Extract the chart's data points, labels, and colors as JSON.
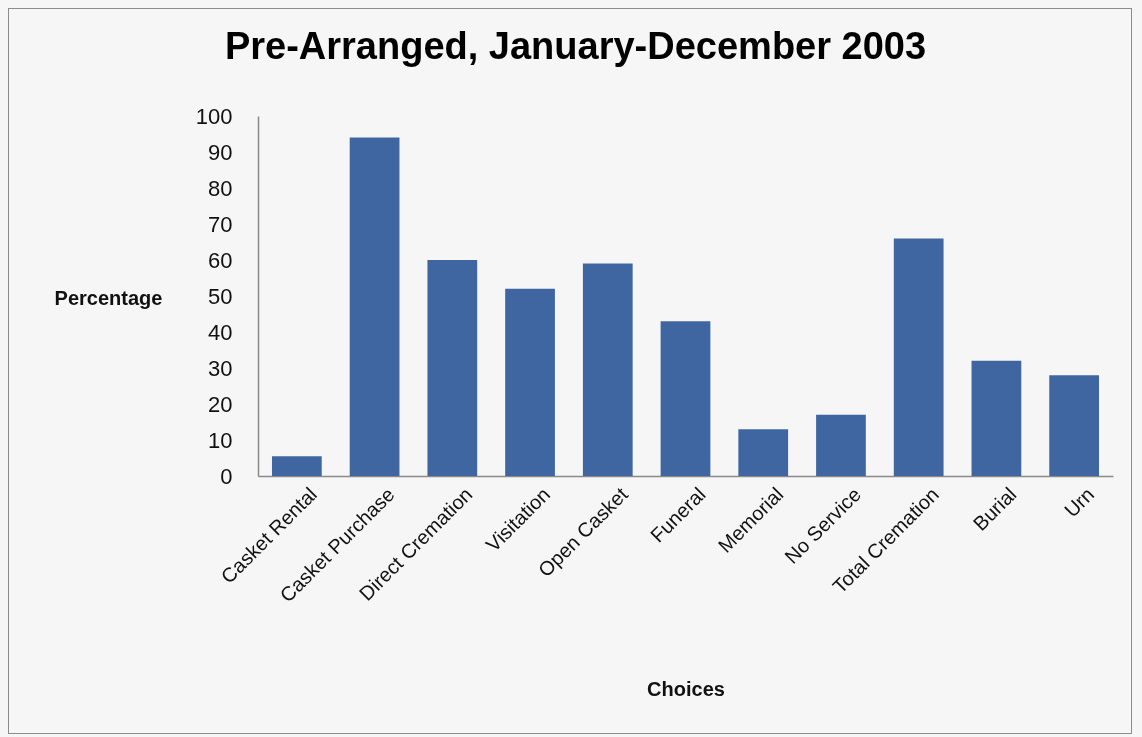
{
  "chart_data": {
    "type": "bar",
    "title": "Pre-Arranged, January-December 2003",
    "xlabel": "Choices",
    "ylabel": "Percentage",
    "categories": [
      "Casket Rental",
      "Casket Purchase",
      "Direct Cremation",
      "Visitation",
      "Open Casket",
      "Funeral",
      "Memorial",
      "No Service",
      "Total Cremation",
      "Burial",
      "Urn"
    ],
    "values": [
      5.5,
      94,
      60,
      52,
      59,
      43,
      13,
      17,
      66,
      32,
      28
    ],
    "color": "#4066a2",
    "ylim": [
      0,
      100
    ],
    "yticks": [
      0,
      10,
      20,
      30,
      40,
      50,
      60,
      70,
      80,
      90,
      100
    ],
    "grid": false
  }
}
